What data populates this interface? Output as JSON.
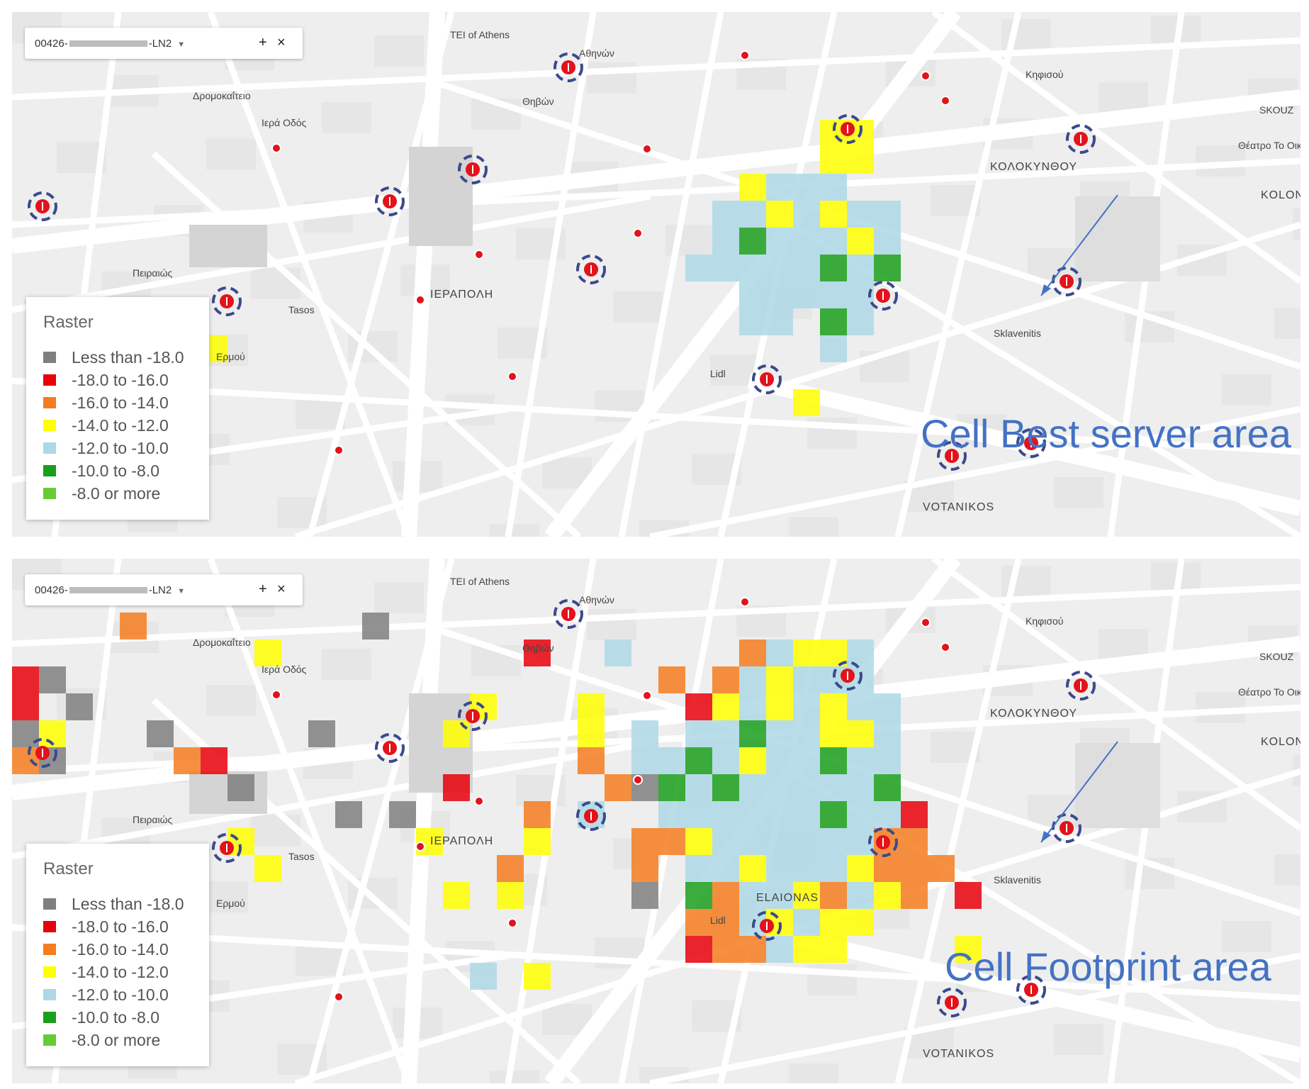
{
  "panels": [
    {
      "id": "top",
      "layer_control": {
        "prefix": "00426-",
        "suffix": "-LN2",
        "add": "+",
        "close": "×"
      },
      "legend": {
        "title": "Raster"
      },
      "annotation": "Cell Best server area"
    },
    {
      "id": "bottom",
      "layer_control": {
        "prefix": "00426-",
        "suffix": "-LN2",
        "add": "+",
        "close": "×"
      },
      "legend": {
        "title": "Raster"
      },
      "annotation": "Cell Footprint area"
    }
  ],
  "legend_items": [
    {
      "label": "Less than -18.0",
      "color": "#7f7f7f"
    },
    {
      "label": "-18.0 to -16.0",
      "color": "#e8000b"
    },
    {
      "label": "-16.0 to -14.0",
      "color": "#f57c1f"
    },
    {
      "label": "-14.0 to -12.0",
      "color": "#ffff00"
    },
    {
      "label": "-12.0 to -10.0",
      "color": "#add8e6"
    },
    {
      "label": "-10.0 to -8.0",
      "color": "#1a9f1a"
    },
    {
      "label": "-8.0 or more",
      "color": "#66cc33"
    }
  ],
  "map_labels": [
    "ΙΕΡΑΠΟΛΗ",
    "ΚΟΛΟΚΥΝΘΟΥ",
    "KOLONOS",
    "VOTANIKOS",
    "SKOUZ",
    "Θέατρο Το Οικό",
    "Tasos",
    "Lidl",
    "Sklavenitis",
    "Δρομοκαΐτειο",
    "TEI of Athens",
    "Ερμού",
    "Ιερά Οδός",
    "Κηφισού",
    "Θηβών",
    "Αθηνών",
    "Πειραιώς",
    "ELAIONAS"
  ]
}
